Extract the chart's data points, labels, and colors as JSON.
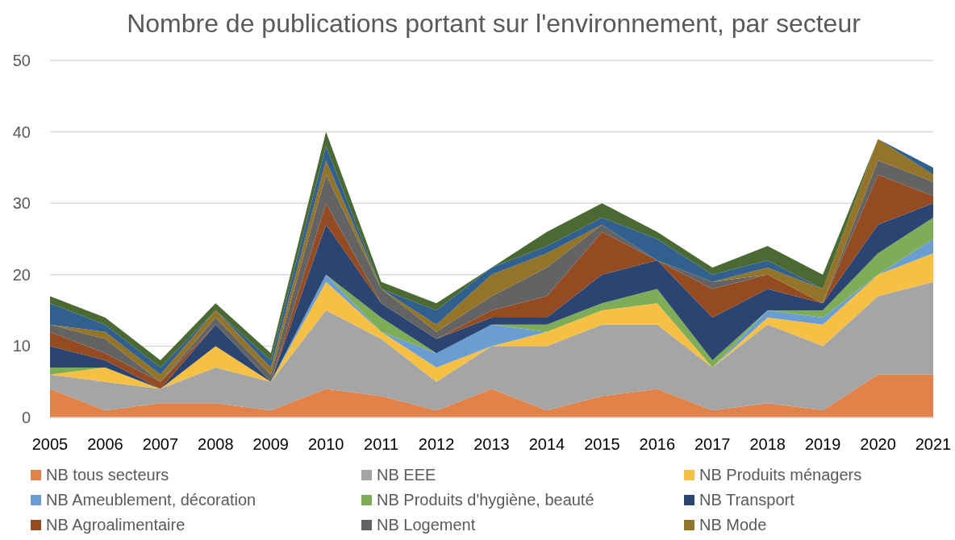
{
  "chart_data": {
    "type": "area",
    "stacked": true,
    "title": "Nombre de publications portant sur l'environnement, par secteur",
    "x": [
      2005,
      2006,
      2007,
      2008,
      2009,
      2010,
      2011,
      2012,
      2013,
      2014,
      2015,
      2016,
      2017,
      2018,
      2019,
      2020,
      2021
    ],
    "xlim": [
      2005,
      2021
    ],
    "xticks": [
      2005,
      2006,
      2007,
      2008,
      2009,
      2010,
      2011,
      2012,
      2013,
      2014,
      2015,
      2016,
      2017,
      2018,
      2019,
      2020,
      2021
    ],
    "ylim": [
      0,
      50
    ],
    "yticks": [
      0,
      10,
      20,
      30,
      40,
      50
    ],
    "grid": "y",
    "legend": "bottom",
    "series": [
      {
        "name": "NB tous secteurs",
        "color": "#e0824a",
        "values": [
          4,
          1,
          2,
          2,
          1,
          4,
          3,
          1,
          4,
          1,
          3,
          4,
          1,
          2,
          1,
          6,
          6
        ]
      },
      {
        "name": "NB EEE",
        "color": "#a5a5a5",
        "values": [
          2,
          4,
          2,
          5,
          4,
          11,
          8,
          4,
          6,
          9,
          10,
          9,
          6,
          11,
          9,
          11,
          13
        ]
      },
      {
        "name": "NB Produits ménagers",
        "color": "#f6c045",
        "values": [
          0,
          2,
          0,
          3,
          0,
          4,
          1,
          2,
          0,
          2,
          2,
          3,
          0,
          1,
          3,
          3,
          4
        ]
      },
      {
        "name": "NB Ameublement, décoration",
        "color": "#6a9ed3",
        "values": [
          0,
          0,
          0,
          0,
          0,
          1,
          0,
          2,
          3,
          0,
          0,
          0,
          0,
          1,
          1,
          0,
          2
        ]
      },
      {
        "name": "NB Produits d'hygiène, beauté",
        "color": "#7fad57",
        "values": [
          1,
          0,
          0,
          0,
          0,
          0,
          2,
          0,
          0,
          1,
          1,
          2,
          1,
          0,
          1,
          3,
          3
        ]
      },
      {
        "name": "NB Transport",
        "color": "#2b4573",
        "values": [
          3,
          1,
          0,
          3,
          0,
          7,
          2,
          2,
          1,
          1,
          4,
          4,
          6,
          3,
          1,
          4,
          2
        ]
      },
      {
        "name": "NB Agroalimentaire",
        "color": "#944b22",
        "values": [
          2,
          1,
          1,
          0,
          0,
          3,
          0,
          0,
          1,
          3,
          6,
          0,
          4,
          2,
          0,
          7,
          1
        ]
      },
      {
        "name": "NB Logement",
        "color": "#636363",
        "values": [
          1,
          2,
          0,
          1,
          1,
          4,
          2,
          1,
          2,
          4,
          1,
          0,
          1,
          0,
          0,
          2,
          2
        ]
      },
      {
        "name": "NB Mode",
        "color": "#937428",
        "values": [
          0,
          1,
          1,
          1,
          1,
          2,
          0,
          1,
          3,
          2,
          0,
          0,
          0,
          1,
          2,
          3,
          1
        ]
      },
      {
        "color": "#31608f",
        "values": [
          3,
          1,
          1,
          0,
          1,
          2,
          0,
          2,
          1,
          1,
          1,
          3,
          1,
          1,
          0,
          0,
          1
        ]
      },
      {
        "color": "#4b6a33",
        "values": [
          1,
          1,
          1,
          1,
          1,
          2,
          1,
          1,
          0,
          2,
          2,
          1,
          1,
          2,
          2,
          0,
          0
        ]
      }
    ]
  }
}
